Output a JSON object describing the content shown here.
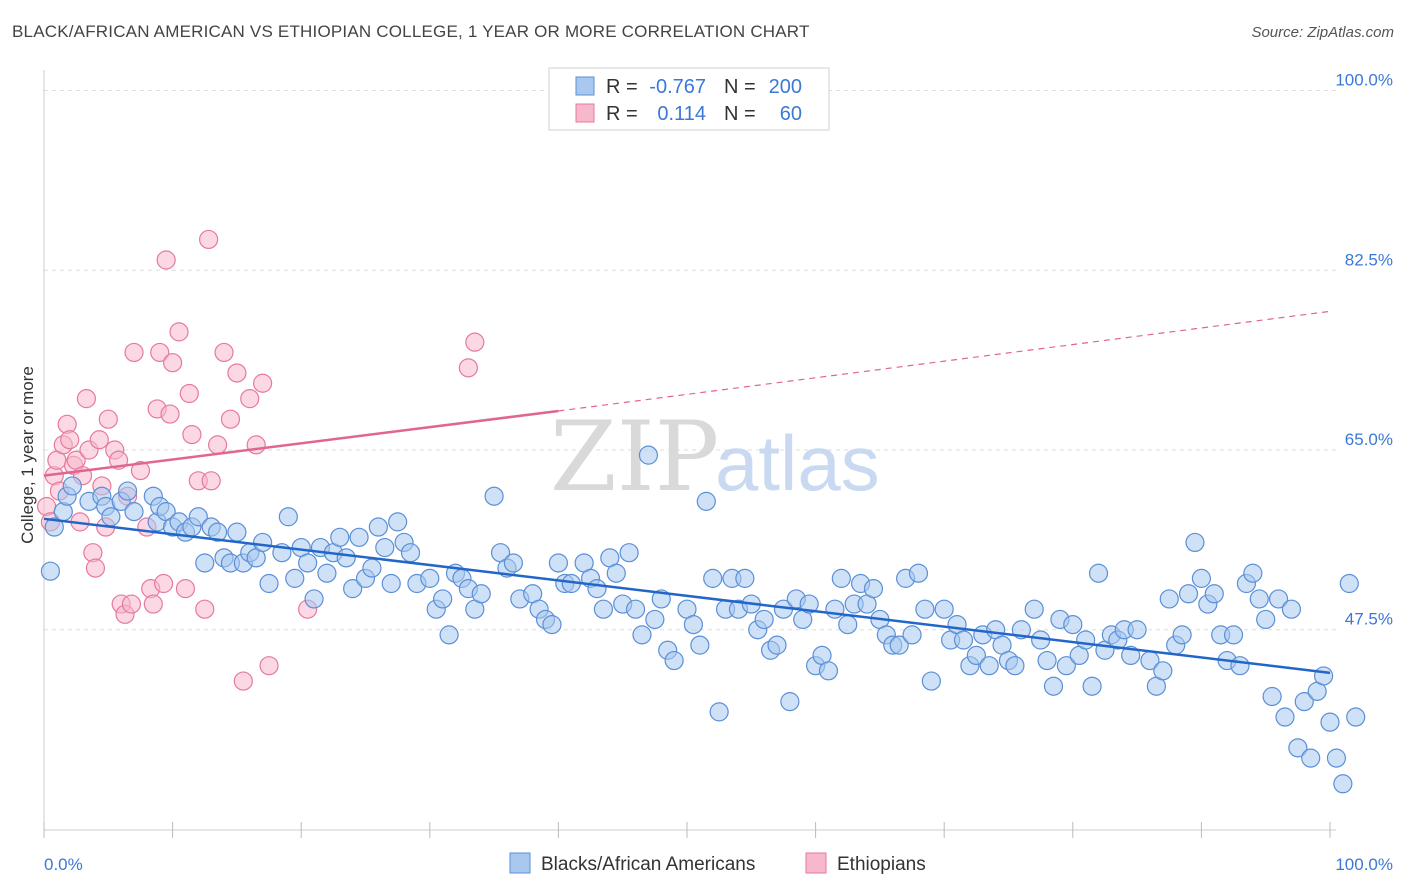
{
  "title": "BLACK/AFRICAN AMERICAN VS ETHIOPIAN COLLEGE, 1 YEAR OR MORE CORRELATION CHART",
  "source": "Source: ZipAtlas.com",
  "colors": {
    "blue_fill": "#a8c8f0",
    "blue_stroke": "#5b8fd6",
    "blue_line": "#2166c8",
    "pink_fill": "#f7b8cc",
    "pink_stroke": "#e67a9c",
    "pink_line": "#e0668f",
    "axis_text": "#3b78d8",
    "grid": "#dddddd"
  },
  "legend": {
    "rows": [
      {
        "r_label": "R =",
        "r_value": "-0.767",
        "n_label": "N =",
        "n_value": "200"
      },
      {
        "r_label": "R =",
        "r_value": "0.114",
        "n_label": "N =",
        "n_value": "60"
      }
    ]
  },
  "bottom_legend": [
    "Blacks/African Americans",
    "Ethiopians"
  ],
  "watermark": {
    "zip": "ZIP",
    "atlas": "atlas"
  },
  "chart_data": {
    "type": "scatter",
    "title": "BLACK/AFRICAN AMERICAN VS ETHIOPIAN COLLEGE, 1 YEAR OR MORE CORRELATION CHART",
    "xlabel": "",
    "ylabel": "College, 1 year or more",
    "xlim": [
      0,
      100
    ],
    "ylim": [
      28,
      102
    ],
    "x_tick_labels": [
      "0.0%",
      "100.0%"
    ],
    "y_ticks": [
      47.5,
      65.0,
      82.5,
      100.0
    ],
    "y_tick_labels": [
      "47.5%",
      "65.0%",
      "82.5%",
      "100.0%"
    ],
    "grid": true,
    "legend_position": "top-center",
    "series": [
      {
        "name": "Blacks/African Americans",
        "R": -0.767,
        "N": 200,
        "trend": {
          "x": [
            0,
            100
          ],
          "y": [
            58.3,
            43.3
          ]
        },
        "points": [
          [
            0.5,
            53.2
          ],
          [
            0.8,
            57.5
          ],
          [
            1.5,
            59.0
          ],
          [
            1.8,
            60.5
          ],
          [
            2.2,
            61.5
          ],
          [
            3.5,
            60.0
          ],
          [
            4.5,
            60.5
          ],
          [
            4.8,
            59.5
          ],
          [
            5.2,
            58.5
          ],
          [
            6.0,
            60.0
          ],
          [
            6.5,
            61.0
          ],
          [
            7.0,
            59.0
          ],
          [
            8.5,
            60.5
          ],
          [
            8.8,
            58.0
          ],
          [
            9.0,
            59.5
          ],
          [
            9.5,
            59.0
          ],
          [
            10.0,
            57.5
          ],
          [
            10.5,
            58.0
          ],
          [
            11.0,
            57.0
          ],
          [
            11.5,
            57.5
          ],
          [
            12.0,
            58.5
          ],
          [
            12.5,
            54.0
          ],
          [
            13.0,
            57.5
          ],
          [
            13.5,
            57.0
          ],
          [
            14.0,
            54.5
          ],
          [
            14.5,
            54.0
          ],
          [
            15.0,
            57.0
          ],
          [
            15.5,
            54.0
          ],
          [
            16.0,
            55.0
          ],
          [
            16.5,
            54.5
          ],
          [
            17.0,
            56.0
          ],
          [
            17.5,
            52.0
          ],
          [
            18.5,
            55.0
          ],
          [
            19.0,
            58.5
          ],
          [
            19.5,
            52.5
          ],
          [
            20.0,
            55.5
          ],
          [
            20.5,
            54.0
          ],
          [
            21.0,
            50.5
          ],
          [
            21.5,
            55.5
          ],
          [
            22.0,
            53.0
          ],
          [
            22.5,
            55.0
          ],
          [
            23.0,
            56.5
          ],
          [
            23.5,
            54.5
          ],
          [
            24.0,
            51.5
          ],
          [
            24.5,
            56.5
          ],
          [
            25.0,
            52.5
          ],
          [
            25.5,
            53.5
          ],
          [
            26.0,
            57.5
          ],
          [
            26.5,
            55.5
          ],
          [
            27.0,
            52.0
          ],
          [
            27.5,
            58.0
          ],
          [
            28.0,
            56.0
          ],
          [
            28.5,
            55.0
          ],
          [
            29.0,
            52.0
          ],
          [
            30.0,
            52.5
          ],
          [
            30.5,
            49.5
          ],
          [
            31.0,
            50.5
          ],
          [
            31.5,
            47.0
          ],
          [
            32.0,
            53.0
          ],
          [
            32.5,
            52.5
          ],
          [
            33.0,
            51.5
          ],
          [
            33.5,
            49.5
          ],
          [
            34.0,
            51.0
          ],
          [
            35.0,
            60.5
          ],
          [
            35.5,
            55.0
          ],
          [
            36.0,
            53.5
          ],
          [
            36.5,
            54.0
          ],
          [
            37.0,
            50.5
          ],
          [
            38.0,
            51.0
          ],
          [
            38.5,
            49.5
          ],
          [
            39.0,
            48.5
          ],
          [
            39.5,
            48.0
          ],
          [
            40.0,
            54.0
          ],
          [
            40.5,
            52.0
          ],
          [
            41.0,
            52.0
          ],
          [
            42.0,
            54.0
          ],
          [
            42.5,
            52.5
          ],
          [
            43.0,
            51.5
          ],
          [
            43.5,
            49.5
          ],
          [
            44.0,
            54.5
          ],
          [
            44.5,
            53.0
          ],
          [
            45.0,
            50.0
          ],
          [
            45.5,
            55.0
          ],
          [
            46.0,
            49.5
          ],
          [
            46.5,
            47.0
          ],
          [
            47.0,
            64.5
          ],
          [
            47.5,
            48.5
          ],
          [
            48.0,
            50.5
          ],
          [
            48.5,
            45.5
          ],
          [
            49.0,
            44.5
          ],
          [
            50.0,
            49.5
          ],
          [
            50.5,
            48.0
          ],
          [
            51.0,
            46.0
          ],
          [
            51.5,
            60.0
          ],
          [
            52.0,
            52.5
          ],
          [
            52.5,
            39.5
          ],
          [
            53.0,
            49.5
          ],
          [
            53.5,
            52.5
          ],
          [
            54.0,
            49.5
          ],
          [
            54.5,
            52.5
          ],
          [
            55.0,
            50.0
          ],
          [
            55.5,
            47.5
          ],
          [
            56.0,
            48.5
          ],
          [
            56.5,
            45.5
          ],
          [
            57.0,
            46.0
          ],
          [
            57.5,
            49.5
          ],
          [
            58.0,
            40.5
          ],
          [
            58.5,
            50.5
          ],
          [
            59.0,
            48.5
          ],
          [
            59.5,
            50.0
          ],
          [
            60.0,
            44.0
          ],
          [
            60.5,
            45.0
          ],
          [
            61.0,
            43.5
          ],
          [
            61.5,
            49.5
          ],
          [
            62.0,
            52.5
          ],
          [
            62.5,
            48.0
          ],
          [
            63.0,
            50.0
          ],
          [
            63.5,
            52.0
          ],
          [
            64.0,
            50.0
          ],
          [
            64.5,
            51.5
          ],
          [
            65.0,
            48.5
          ],
          [
            65.5,
            47.0
          ],
          [
            66.0,
            46.0
          ],
          [
            66.5,
            46.0
          ],
          [
            67.0,
            52.5
          ],
          [
            67.5,
            47.0
          ],
          [
            68.0,
            53.0
          ],
          [
            68.5,
            49.5
          ],
          [
            69.0,
            42.5
          ],
          [
            70.0,
            49.5
          ],
          [
            70.5,
            46.5
          ],
          [
            71.0,
            48.0
          ],
          [
            71.5,
            46.5
          ],
          [
            72.0,
            44.0
          ],
          [
            72.5,
            45.0
          ],
          [
            73.0,
            47.0
          ],
          [
            73.5,
            44.0
          ],
          [
            74.0,
            47.5
          ],
          [
            74.5,
            46.0
          ],
          [
            75.0,
            44.5
          ],
          [
            75.5,
            44.0
          ],
          [
            76.0,
            47.5
          ],
          [
            77.0,
            49.5
          ],
          [
            77.5,
            46.5
          ],
          [
            78.0,
            44.5
          ],
          [
            78.5,
            42.0
          ],
          [
            79.0,
            48.5
          ],
          [
            79.5,
            44.0
          ],
          [
            80.0,
            48.0
          ],
          [
            80.5,
            45.0
          ],
          [
            81.0,
            46.5
          ],
          [
            81.5,
            42.0
          ],
          [
            82.0,
            53.0
          ],
          [
            82.5,
            45.5
          ],
          [
            83.0,
            47.0
          ],
          [
            83.5,
            46.5
          ],
          [
            84.0,
            47.5
          ],
          [
            84.5,
            45.0
          ],
          [
            85.0,
            47.5
          ],
          [
            86.0,
            44.5
          ],
          [
            86.5,
            42.0
          ],
          [
            87.0,
            43.5
          ],
          [
            87.5,
            50.5
          ],
          [
            88.0,
            46.0
          ],
          [
            88.5,
            47.0
          ],
          [
            89.0,
            51.0
          ],
          [
            89.5,
            56.0
          ],
          [
            90.0,
            52.5
          ],
          [
            90.5,
            50.0
          ],
          [
            91.0,
            51.0
          ],
          [
            91.5,
            47.0
          ],
          [
            92.0,
            44.5
          ],
          [
            92.5,
            47.0
          ],
          [
            93.0,
            44.0
          ],
          [
            93.5,
            52.0
          ],
          [
            94.0,
            53.0
          ],
          [
            94.5,
            50.5
          ],
          [
            95.0,
            48.5
          ],
          [
            95.5,
            41.0
          ],
          [
            96.0,
            50.5
          ],
          [
            96.5,
            39.0
          ],
          [
            97.0,
            49.5
          ],
          [
            97.5,
            36.0
          ],
          [
            98.0,
            40.5
          ],
          [
            98.5,
            35.0
          ],
          [
            99.0,
            41.5
          ],
          [
            99.5,
            43.0
          ],
          [
            100.0,
            38.5
          ],
          [
            100.5,
            35.0
          ],
          [
            101.0,
            32.5
          ],
          [
            101.5,
            52.0
          ],
          [
            102.0,
            39.0
          ]
        ]
      },
      {
        "name": "Ethiopians",
        "R": 0.114,
        "N": 60,
        "trend": {
          "x": [
            0,
            40
          ],
          "y": [
            62.5,
            68.8
          ]
        },
        "trend_extrapolated": {
          "x": [
            40,
            100
          ],
          "y": [
            68.8,
            78.5
          ]
        },
        "points": [
          [
            0.2,
            59.5
          ],
          [
            0.5,
            58.0
          ],
          [
            0.8,
            62.5
          ],
          [
            1.0,
            64.0
          ],
          [
            1.2,
            61.0
          ],
          [
            1.5,
            65.5
          ],
          [
            1.8,
            67.5
          ],
          [
            2.0,
            66.0
          ],
          [
            2.3,
            63.5
          ],
          [
            2.5,
            64.0
          ],
          [
            2.8,
            58.0
          ],
          [
            3.0,
            62.5
          ],
          [
            3.3,
            70.0
          ],
          [
            3.5,
            65.0
          ],
          [
            3.8,
            55.0
          ],
          [
            4.0,
            53.5
          ],
          [
            4.3,
            66.0
          ],
          [
            4.5,
            61.5
          ],
          [
            4.8,
            57.5
          ],
          [
            5.0,
            68.0
          ],
          [
            5.5,
            65.0
          ],
          [
            5.8,
            64.0
          ],
          [
            6.0,
            50.0
          ],
          [
            6.3,
            49.0
          ],
          [
            6.5,
            60.5
          ],
          [
            6.8,
            50.0
          ],
          [
            7.0,
            74.5
          ],
          [
            7.5,
            63.0
          ],
          [
            8.0,
            57.5
          ],
          [
            8.3,
            51.5
          ],
          [
            8.5,
            50.0
          ],
          [
            8.8,
            69.0
          ],
          [
            9.0,
            74.5
          ],
          [
            9.3,
            52.0
          ],
          [
            9.5,
            83.5
          ],
          [
            9.8,
            68.5
          ],
          [
            10.0,
            73.5
          ],
          [
            10.5,
            76.5
          ],
          [
            11.0,
            51.5
          ],
          [
            11.3,
            70.5
          ],
          [
            11.5,
            66.5
          ],
          [
            12.0,
            62.0
          ],
          [
            12.5,
            49.5
          ],
          [
            12.8,
            85.5
          ],
          [
            13.0,
            62.0
          ],
          [
            13.5,
            65.5
          ],
          [
            14.0,
            74.5
          ],
          [
            14.5,
            68.0
          ],
          [
            15.0,
            72.5
          ],
          [
            15.5,
            42.5
          ],
          [
            16.0,
            70.0
          ],
          [
            16.5,
            65.5
          ],
          [
            17.0,
            71.5
          ],
          [
            17.5,
            44.0
          ],
          [
            20.5,
            49.5
          ],
          [
            33.0,
            73.0
          ],
          [
            33.5,
            75.5
          ]
        ]
      }
    ]
  }
}
